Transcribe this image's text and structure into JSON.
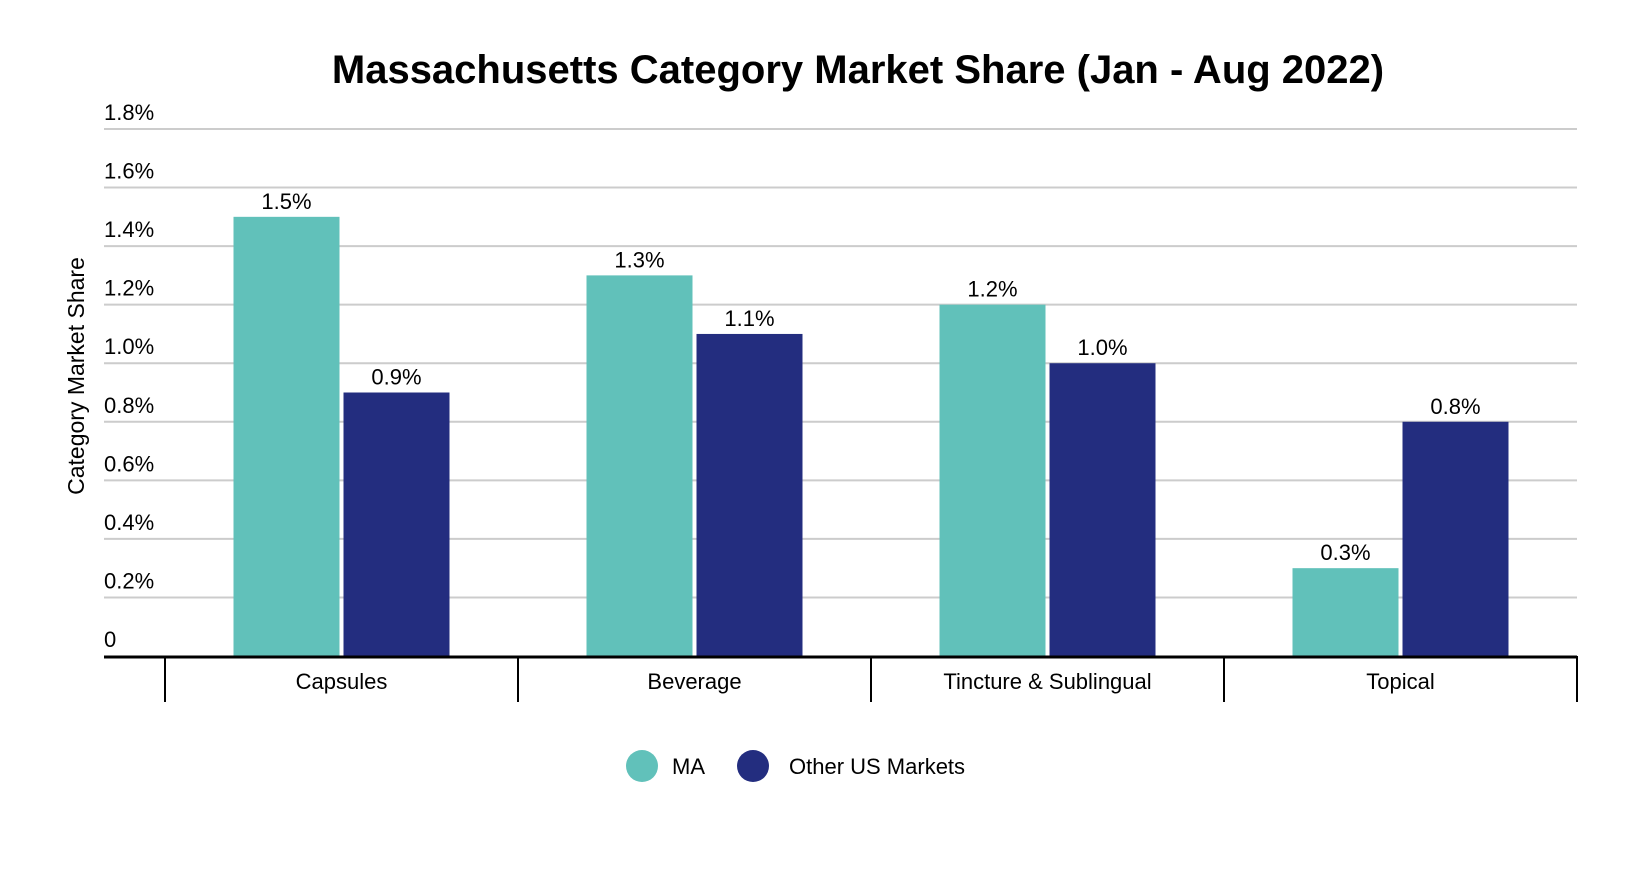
{
  "chart_data": {
    "type": "bar",
    "title": "Massachusetts Category Market Share (Jan - Aug 2022)",
    "xlabel": "",
    "ylabel": "Category Market Share",
    "ylim": [
      0,
      1.8
    ],
    "yticks": [
      0,
      0.2,
      0.4,
      0.6,
      0.8,
      1.0,
      1.2,
      1.4,
      1.6,
      1.8
    ],
    "ytick_labels": [
      "0",
      "0.2%",
      "0.4%",
      "0.6%",
      "0.8%",
      "1.0%",
      "1.2%",
      "1.4%",
      "1.6%",
      "1.8%"
    ],
    "grid": true,
    "legend_position": "bottom",
    "categories": [
      "Capsules",
      "Beverage",
      "Tincture & Sublingual",
      "Topical"
    ],
    "series": [
      {
        "name": "MA",
        "color": "#61C1BA",
        "values": [
          1.5,
          1.3,
          1.2,
          0.3
        ],
        "labels": [
          "1.5%",
          "1.3%",
          "1.2%",
          "0.3%"
        ]
      },
      {
        "name": "Other US Markets",
        "color": "#232D7F",
        "values": [
          0.9,
          1.1,
          1.0,
          0.8
        ],
        "labels": [
          "0.9%",
          "1.1%",
          "1.0%",
          "0.8%"
        ]
      }
    ]
  }
}
